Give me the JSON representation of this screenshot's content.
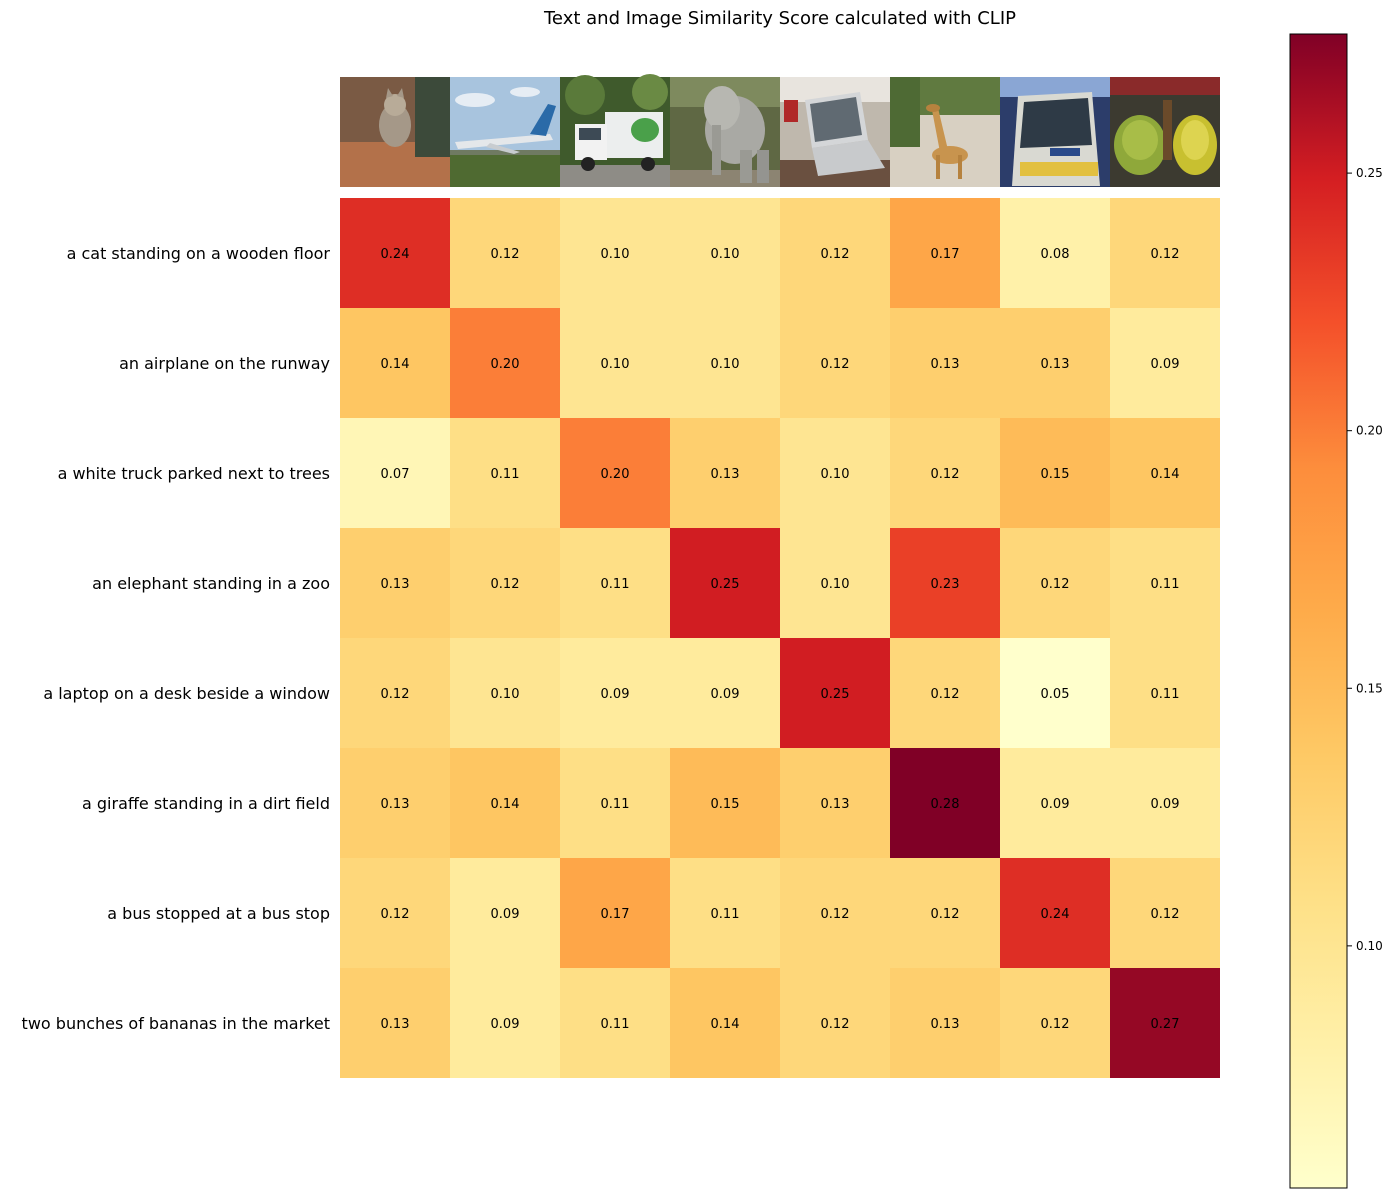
{
  "chart_data": {
    "type": "heatmap",
    "title": "Text and Image Similarity Score calculated with CLIP",
    "rows": [
      "a cat standing on a wooden floor",
      "an airplane on the runway",
      "a white truck parked next to trees",
      "an elephant standing in a zoo",
      "a laptop on a desk beside a window",
      "a giraffe standing in a dirt field",
      "a bus stopped at a bus stop",
      "two bunches of bananas in the market"
    ],
    "column_images": [
      "cat-image",
      "airplane-image",
      "truck-image",
      "elephant-image",
      "laptop-image",
      "giraffe-image",
      "bus-image",
      "bananas-image"
    ],
    "values": [
      [
        0.24,
        0.12,
        0.1,
        0.1,
        0.12,
        0.17,
        0.08,
        0.12
      ],
      [
        0.14,
        0.2,
        0.1,
        0.1,
        0.12,
        0.13,
        0.13,
        0.09
      ],
      [
        0.07,
        0.11,
        0.2,
        0.13,
        0.1,
        0.12,
        0.15,
        0.14
      ],
      [
        0.13,
        0.12,
        0.11,
        0.25,
        0.1,
        0.23,
        0.12,
        0.11
      ],
      [
        0.12,
        0.1,
        0.09,
        0.09,
        0.25,
        0.12,
        0.05,
        0.11
      ],
      [
        0.13,
        0.14,
        0.11,
        0.15,
        0.13,
        0.28,
        0.09,
        0.09
      ],
      [
        0.12,
        0.09,
        0.17,
        0.11,
        0.12,
        0.12,
        0.24,
        0.12
      ],
      [
        0.13,
        0.09,
        0.11,
        0.14,
        0.12,
        0.13,
        0.12,
        0.27
      ]
    ],
    "colormap": "YlOrRd",
    "colorbar": {
      "range": [
        0.053,
        0.277
      ],
      "ticks": [
        "0.10",
        "0.15",
        "0.20",
        "0.25"
      ]
    }
  }
}
